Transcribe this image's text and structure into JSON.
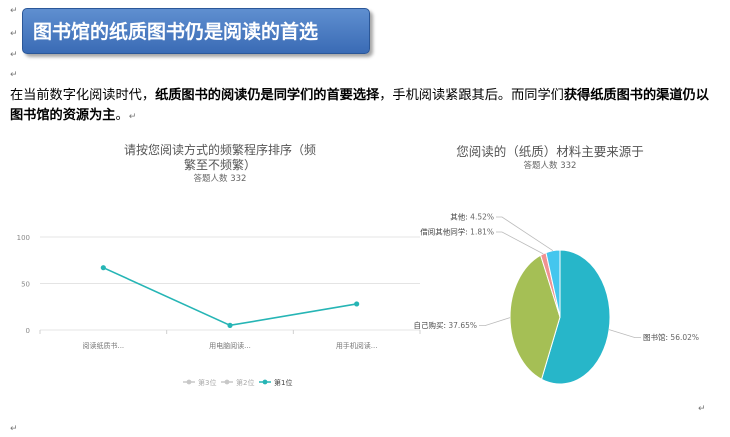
{
  "heading": "图书馆的纸质图书仍是阅读的首选",
  "paragraph": {
    "p1": "在当前数字化阅读时代，",
    "p2": "纸质图书的阅读仍是同学们的首要选择",
    "p3": "，手机阅读紧跟其后。而同学们",
    "p4": "获得纸质图书的渠道仍以图书馆的资源为主",
    "p5": "。"
  },
  "mark": "↵",
  "chart_data": [
    {
      "type": "line",
      "title": "请按您阅读方式的频繁程序排序（频繁至不频繁）",
      "subtitle": "答题人数 332",
      "categories": [
        "阅读纸质书...",
        "用电脑阅读...",
        "用手机阅读..."
      ],
      "series": [
        {
          "name": "第3位",
          "values": [
            null,
            null,
            null
          ],
          "color": "#bbbbbb"
        },
        {
          "name": "第2位",
          "values": [
            null,
            null,
            null
          ],
          "color": "#bbbbbb"
        },
        {
          "name": "第1位",
          "values": [
            67,
            5,
            28
          ],
          "color": "#26b5b5"
        }
      ],
      "yticks": [
        0,
        50,
        100
      ],
      "ylim": [
        0,
        100
      ],
      "legend": "bottom",
      "grid": true
    },
    {
      "type": "pie",
      "title": "您阅读的（纸质）材料主要来源于",
      "subtitle": "答题人数 332",
      "slices": [
        {
          "label": "图书馆",
          "value": 56.02,
          "text": "56.02%",
          "color": "#27b6c9"
        },
        {
          "label": "自己购买",
          "value": 37.65,
          "text": "37.65%",
          "color": "#a5bf55"
        },
        {
          "label": "借阅其他同学",
          "value": 1.81,
          "text": "1.81%",
          "color": "#f09292"
        },
        {
          "label": "其他",
          "value": 4.52,
          "text": "4.52%",
          "color": "#44c6ee"
        }
      ],
      "legend": "labels"
    }
  ]
}
